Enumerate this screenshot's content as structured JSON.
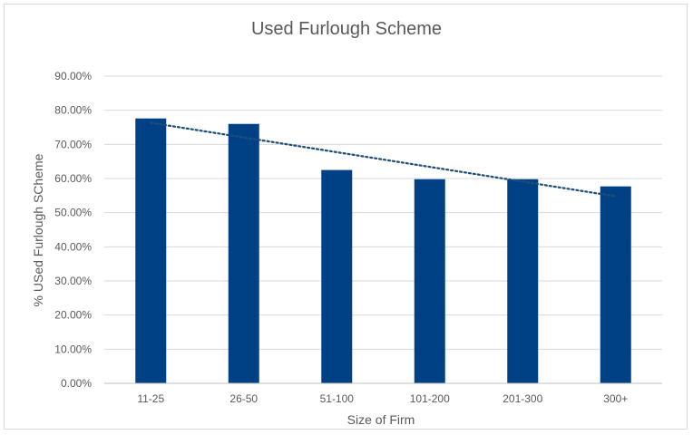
{
  "chart_data": {
    "type": "bar",
    "title": "Used Furlough Scheme",
    "xlabel": "Size of Firm",
    "ylabel": "% USed Furlough SCheme",
    "categories": [
      "11-25",
      "26-50",
      "51-100",
      "101-200",
      "201-300",
      "300+"
    ],
    "values": [
      77.6,
      76.0,
      62.5,
      59.8,
      59.8,
      57.7
    ],
    "ylim": [
      0,
      90
    ],
    "yticks": [
      "0.00%",
      "10.00%",
      "20.00%",
      "30.00%",
      "40.00%",
      "50.00%",
      "60.00%",
      "70.00%",
      "80.00%",
      "90.00%"
    ],
    "ytick_values": [
      0,
      10,
      20,
      30,
      40,
      50,
      60,
      70,
      80,
      90
    ],
    "bar_color": "#004185",
    "trendline": {
      "type": "linear",
      "style": "dotted",
      "color": "#1f4e79"
    },
    "grid": true,
    "legend": false
  }
}
